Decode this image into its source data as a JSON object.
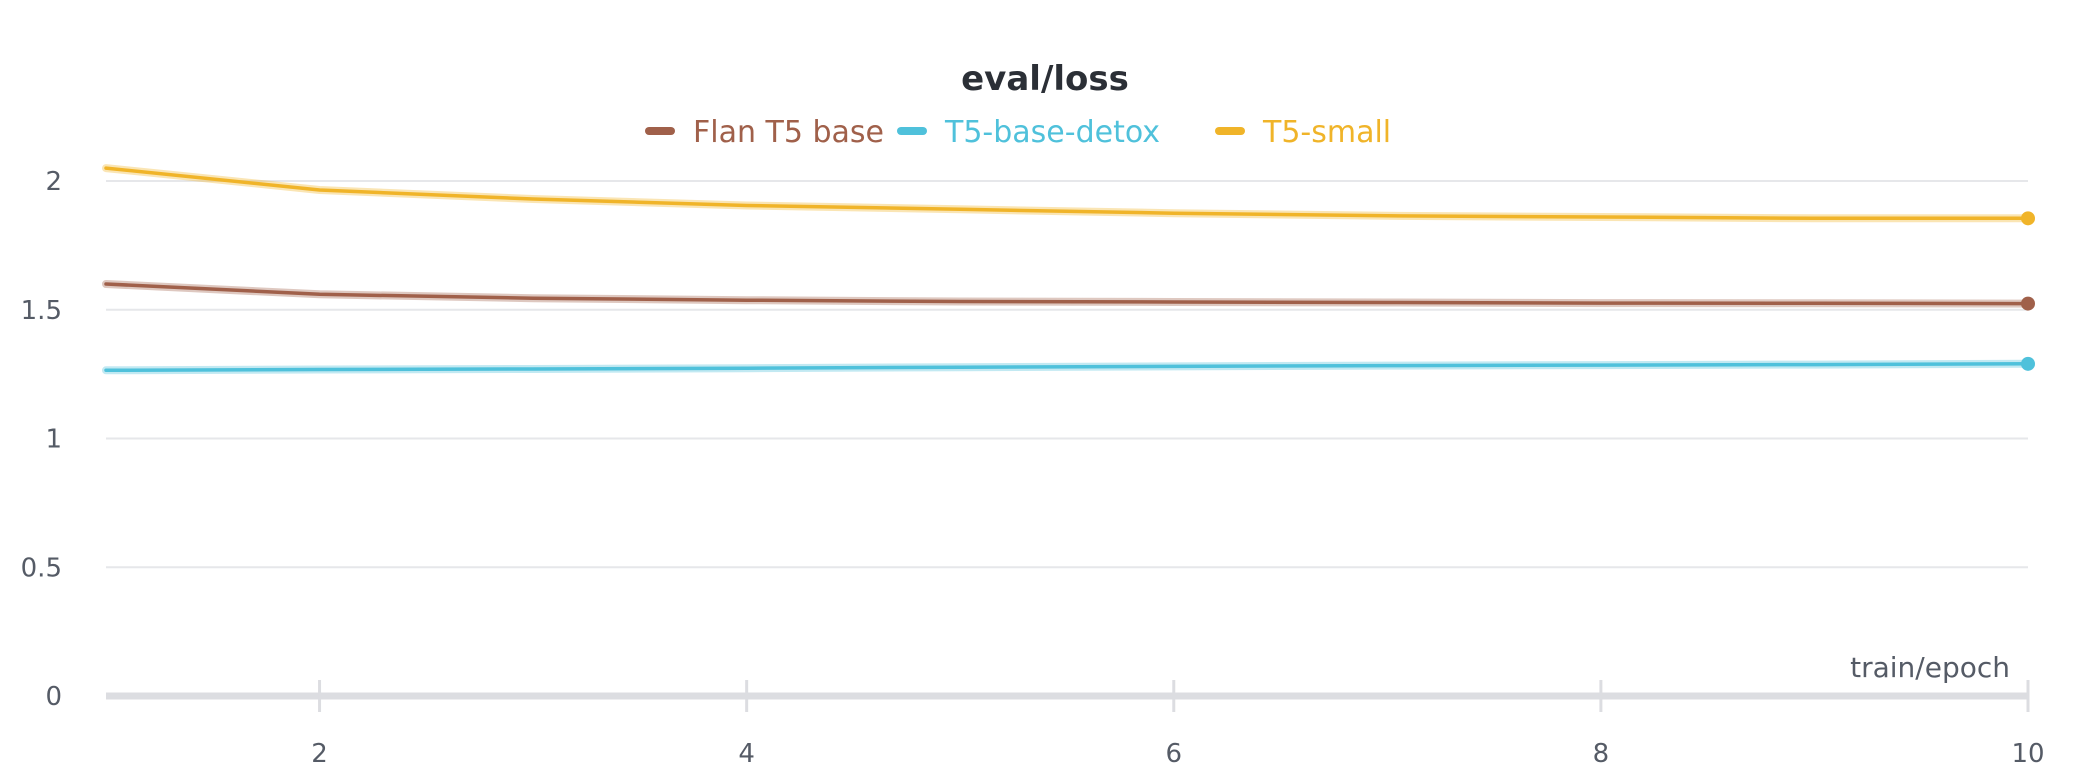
{
  "chart_data": {
    "type": "line",
    "title": "eval/loss",
    "xlabel": "train/epoch",
    "ylabel": "",
    "xlim": [
      1,
      10
    ],
    "ylim": [
      0,
      2.1
    ],
    "xticks": [
      2,
      4,
      6,
      8,
      10
    ],
    "yticks": [
      0,
      0.5,
      1,
      1.5,
      2
    ],
    "ytick_labels": [
      "0",
      "0.5",
      "1",
      "1.5",
      "2"
    ],
    "grid": true,
    "legend_position": "top-center",
    "x": [
      1,
      2,
      3,
      4,
      5,
      6,
      7,
      8,
      9,
      10
    ],
    "series": [
      {
        "name": "Flan T5 base",
        "color": "#a0604a",
        "values": [
          1.6,
          1.56,
          1.545,
          1.537,
          1.532,
          1.53,
          1.528,
          1.526,
          1.525,
          1.524
        ]
      },
      {
        "name": "T5-base-detox",
        "color": "#4fc1db",
        "values": [
          1.265,
          1.268,
          1.27,
          1.273,
          1.277,
          1.28,
          1.283,
          1.285,
          1.287,
          1.29
        ]
      },
      {
        "name": "T5-small",
        "color": "#f0b429",
        "values": [
          2.05,
          1.965,
          1.93,
          1.905,
          1.89,
          1.875,
          1.865,
          1.86,
          1.855,
          1.855
        ]
      }
    ]
  }
}
